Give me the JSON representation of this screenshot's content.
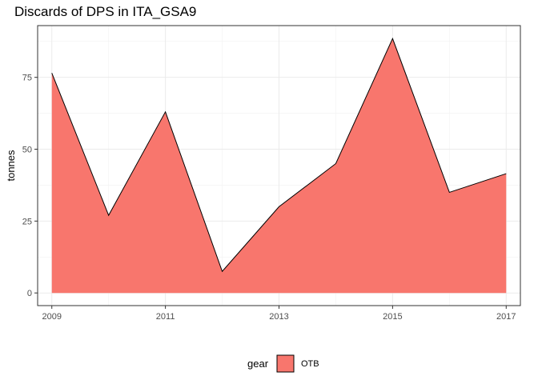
{
  "chart_data": {
    "type": "area",
    "title": "Discards of DPS in ITA_GSA9",
    "xlabel": "",
    "ylabel": "tonnes",
    "x": [
      2009,
      2010,
      2011,
      2012,
      2013,
      2014,
      2015,
      2016,
      2017
    ],
    "series": [
      {
        "name": "OTB",
        "values": [
          76.5,
          27.0,
          63.0,
          7.5,
          30.0,
          45.0,
          88.5,
          35.0,
          41.5
        ],
        "color": "#F8766D"
      }
    ],
    "xlim": [
      2008.75,
      2017.25
    ],
    "ylim": [
      -4.4,
      93
    ],
    "x_ticks": [
      "2009",
      "2011",
      "2013",
      "2015",
      "2017"
    ],
    "y_ticks": [
      "0",
      "25",
      "50",
      "75"
    ],
    "legend": {
      "title": "gear",
      "placement": "bottom"
    },
    "grid": true
  }
}
